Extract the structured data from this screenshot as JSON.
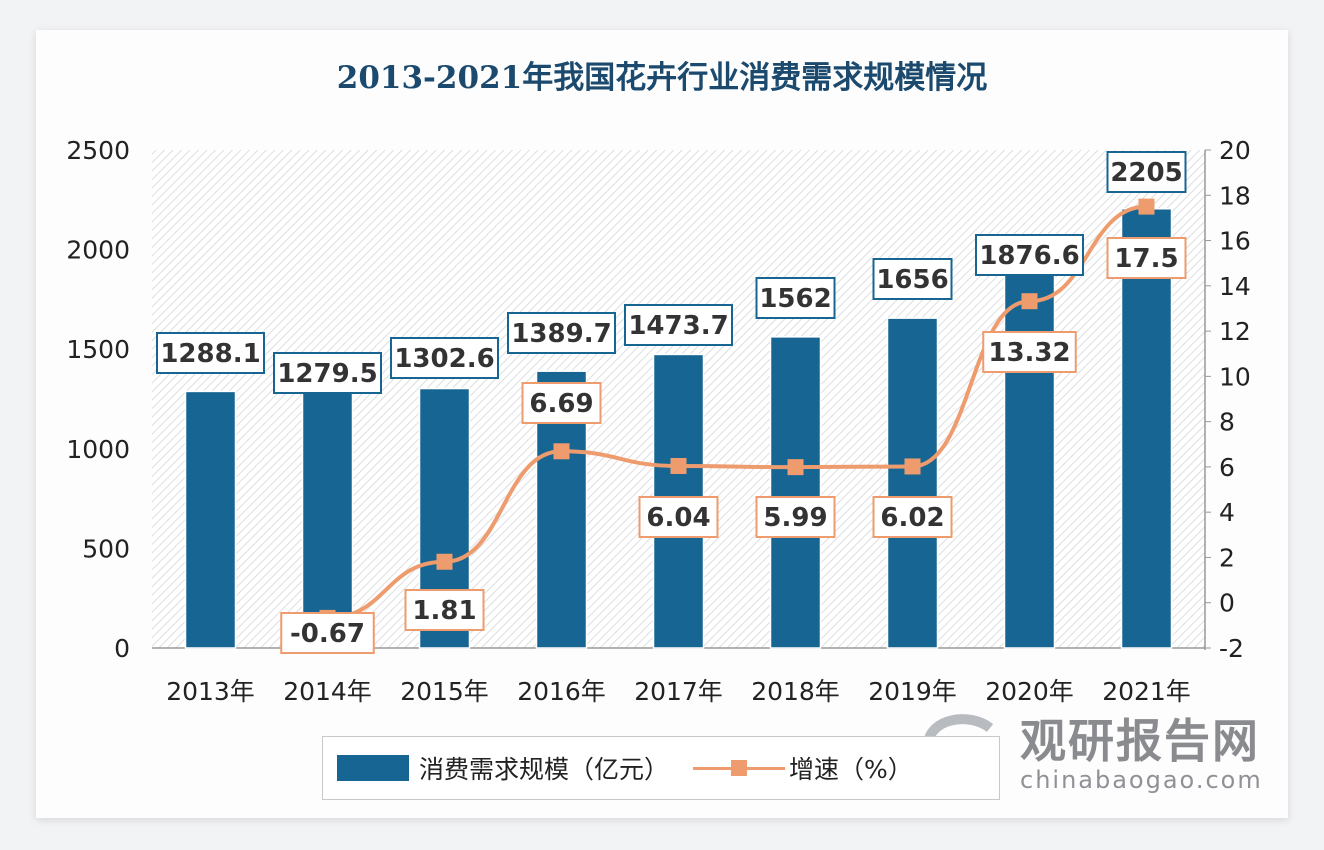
{
  "chart_data": {
    "type": "bar",
    "title": "2013-2021年我国花卉行业消费需求规模情况",
    "categories": [
      "2013年",
      "2014年",
      "2015年",
      "2016年",
      "2017年",
      "2018年",
      "2019年",
      "2020年",
      "2021年"
    ],
    "series": [
      {
        "name": "消费需求规模（亿元）",
        "type": "bar",
        "axis": "left",
        "values": [
          1288.1,
          1279.5,
          1302.6,
          1389.7,
          1473.7,
          1562,
          1656,
          1876.6,
          2205
        ],
        "labels": [
          "1288.1",
          "1279.5",
          "1302.6",
          "1389.7",
          "1473.7",
          "1562",
          "1656",
          "1876.6",
          "2205"
        ]
      },
      {
        "name": "增速（%）",
        "type": "line",
        "axis": "right",
        "values": [
          null,
          -0.67,
          1.81,
          6.69,
          6.04,
          5.99,
          6.02,
          13.32,
          17.5
        ],
        "labels": [
          "",
          "-0.67",
          "1.81",
          "6.69",
          "6.04",
          "5.99",
          "6.02",
          "13.32",
          "17.5"
        ]
      }
    ],
    "yleft": {
      "ylim": [
        0,
        2500
      ],
      "ticks": [
        "0",
        "500",
        "1000",
        "1500",
        "2000",
        "2500"
      ]
    },
    "yright": {
      "ylim": [
        -2,
        20
      ],
      "ticks": [
        "-2",
        "0",
        "2",
        "4",
        "6",
        "8",
        "10",
        "12",
        "14",
        "16",
        "18",
        "20"
      ]
    },
    "legend": "bottom",
    "colors": {
      "bar": "#176592",
      "line": "#ee9c6e",
      "title": "#1b4a6e"
    }
  },
  "watermark": {
    "cn": "观研报告网",
    "en": "chinabaogao.com"
  }
}
